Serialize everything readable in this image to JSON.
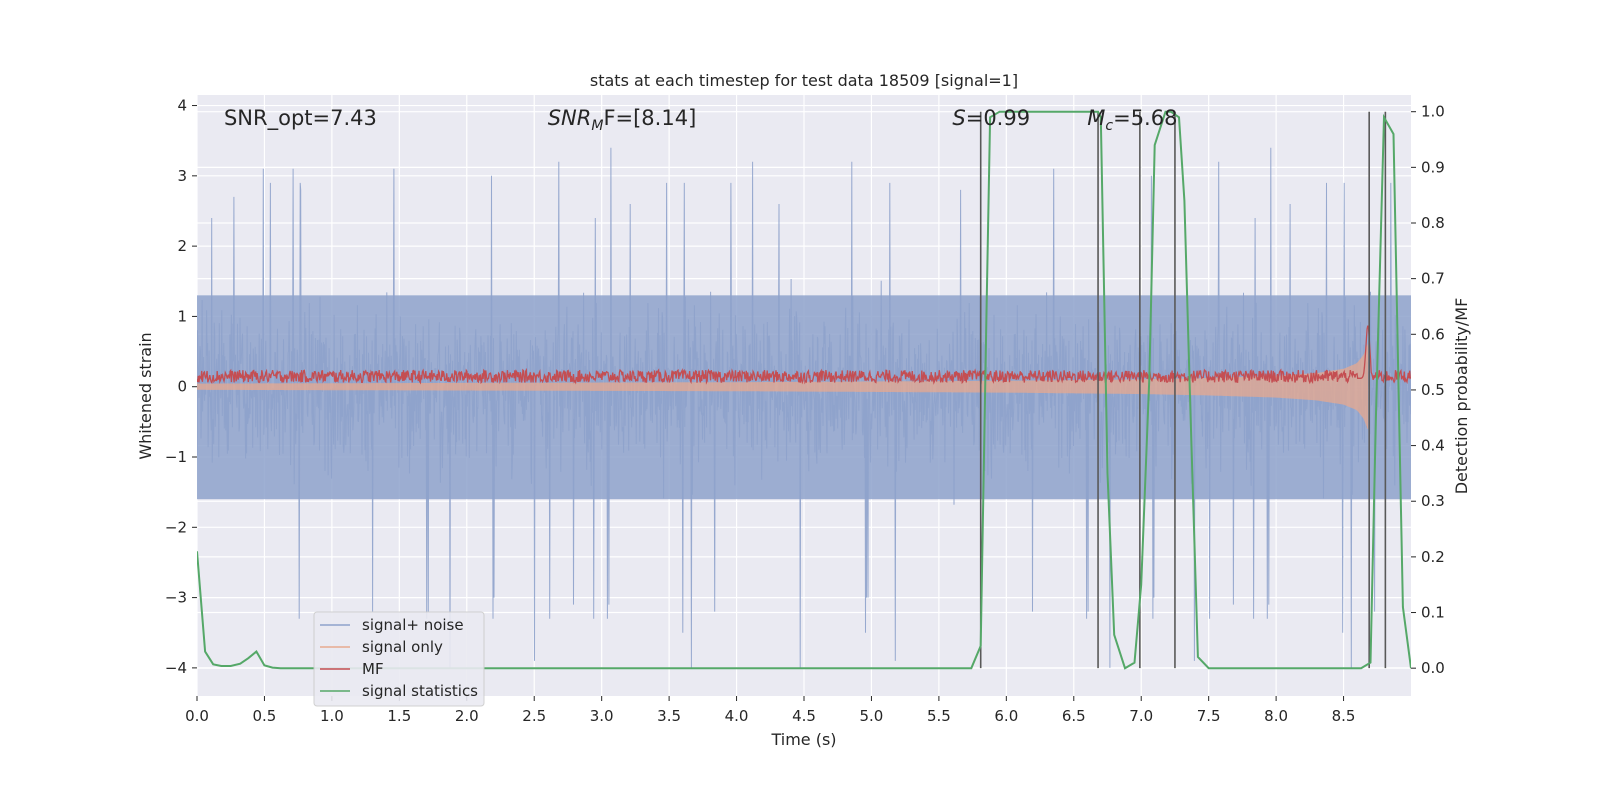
{
  "chart_data": {
    "type": "line",
    "title": "stats at each timestep for test data 18509 [signal=1]",
    "xlabel": "Time (s)",
    "ylabel_left": "Whitened strain",
    "ylabel_right": "Detection probability/MF",
    "xlim": [
      0,
      9.0
    ],
    "ylim_left": [
      -4.4,
      4.15
    ],
    "ylim_right": [
      -0.05,
      1.03
    ],
    "x_ticks": [
      "0.0",
      "0.5",
      "1.0",
      "1.5",
      "2.0",
      "2.5",
      "3.0",
      "3.5",
      "4.0",
      "4.5",
      "5.0",
      "5.5",
      "6.0",
      "6.5",
      "7.0",
      "7.5",
      "8.0",
      "8.5"
    ],
    "y_left_ticks": [
      "4",
      "3",
      "2",
      "1",
      "0",
      "−1",
      "−2",
      "−3",
      "−4"
    ],
    "y_right_ticks": [
      "1.0",
      "0.9",
      "0.8",
      "0.7",
      "0.6",
      "0.5",
      "0.4",
      "0.3",
      "0.2",
      "0.1",
      "0.0"
    ],
    "grid": true,
    "legend_position": "lower-left",
    "annotations": [
      {
        "prefix": "",
        "symbol": "",
        "sub": "",
        "text": "SNR_opt=7.43",
        "x": 0.2,
        "y": 3.82
      },
      {
        "prefix": "SNR",
        "symbol": "",
        "sub": "M",
        "text": "F=[8.14]",
        "x": 2.6,
        "y": 3.82
      },
      {
        "prefix": "S",
        "symbol": "",
        "sub": "",
        "text": "=0.99",
        "x": 5.6,
        "y": 3.82
      },
      {
        "prefix": "M",
        "symbol": "",
        "sub": "c",
        "text": "=5.68",
        "x": 6.6,
        "y": 3.82
      }
    ],
    "series": [
      {
        "name": "signal+ noise",
        "color": "#8ea2cb",
        "style": "noise",
        "envelope_typical": [
          1.3,
          -1.6
        ],
        "spike_peaks_up": [
          2.9,
          3.4,
          3.0,
          3.2,
          2.6,
          2.4,
          3.1,
          2.2,
          3.3,
          2.9,
          2.7,
          2.9,
          3.1,
          2.8,
          2.6
        ],
        "spike_peaks_down": [
          -3.2,
          -3.0,
          -3.5,
          -3.4,
          -4.0,
          -3.3,
          -3.9,
          -3.3,
          -3.5,
          -3.0,
          -3.3,
          -3.1,
          -3.2,
          -4.0
        ]
      },
      {
        "name": "signal only",
        "color": "#e8a98f",
        "style": "chirp",
        "x": [
          0.0,
          4.0,
          5.0,
          6.0,
          7.0,
          7.5,
          8.0,
          8.3,
          8.5,
          8.6,
          8.65,
          8.68
        ],
        "amplitude": [
          0.04,
          0.06,
          0.07,
          0.08,
          0.1,
          0.12,
          0.15,
          0.19,
          0.25,
          0.33,
          0.45,
          0.6
        ]
      },
      {
        "name": "MF",
        "color": "#c44e52",
        "style": "mf",
        "baseline": 0.12,
        "jitter": 0.09
      },
      {
        "name": "signal statistics",
        "color": "#55a868",
        "axis": "right",
        "x": [
          0.0,
          0.06,
          0.12,
          0.18,
          0.25,
          0.32,
          0.38,
          0.44,
          0.5,
          0.56,
          0.62,
          0.7,
          5.7,
          5.74,
          5.81,
          5.85,
          5.88,
          5.95,
          6.68,
          6.7,
          6.75,
          6.8,
          6.88,
          6.95,
          7.0,
          7.06,
          7.1,
          7.18,
          7.22,
          7.28,
          7.32,
          7.36,
          7.42,
          7.5,
          8.4,
          8.55,
          8.63,
          8.7,
          8.74,
          8.8,
          8.87,
          8.94,
          9.0
        ],
        "values": [
          0.21,
          0.03,
          0.007,
          0.004,
          0.004,
          0.008,
          0.018,
          0.03,
          0.005,
          0.001,
          0.0,
          0.0,
          0.0,
          0.0,
          0.04,
          0.6,
          0.99,
          1.0,
          1.0,
          0.99,
          0.35,
          0.06,
          0.0,
          0.01,
          0.15,
          0.52,
          0.94,
          1.0,
          1.0,
          0.99,
          0.84,
          0.5,
          0.02,
          0.0,
          0.0,
          0.0,
          0.0,
          0.01,
          0.45,
          0.99,
          0.96,
          0.11,
          0.0
        ]
      }
    ],
    "vertical_markers": {
      "color": "#595959",
      "x": [
        5.81,
        6.68,
        6.99,
        7.25,
        8.69,
        8.81
      ],
      "y_range_right": [
        0.0,
        1.0
      ]
    }
  }
}
